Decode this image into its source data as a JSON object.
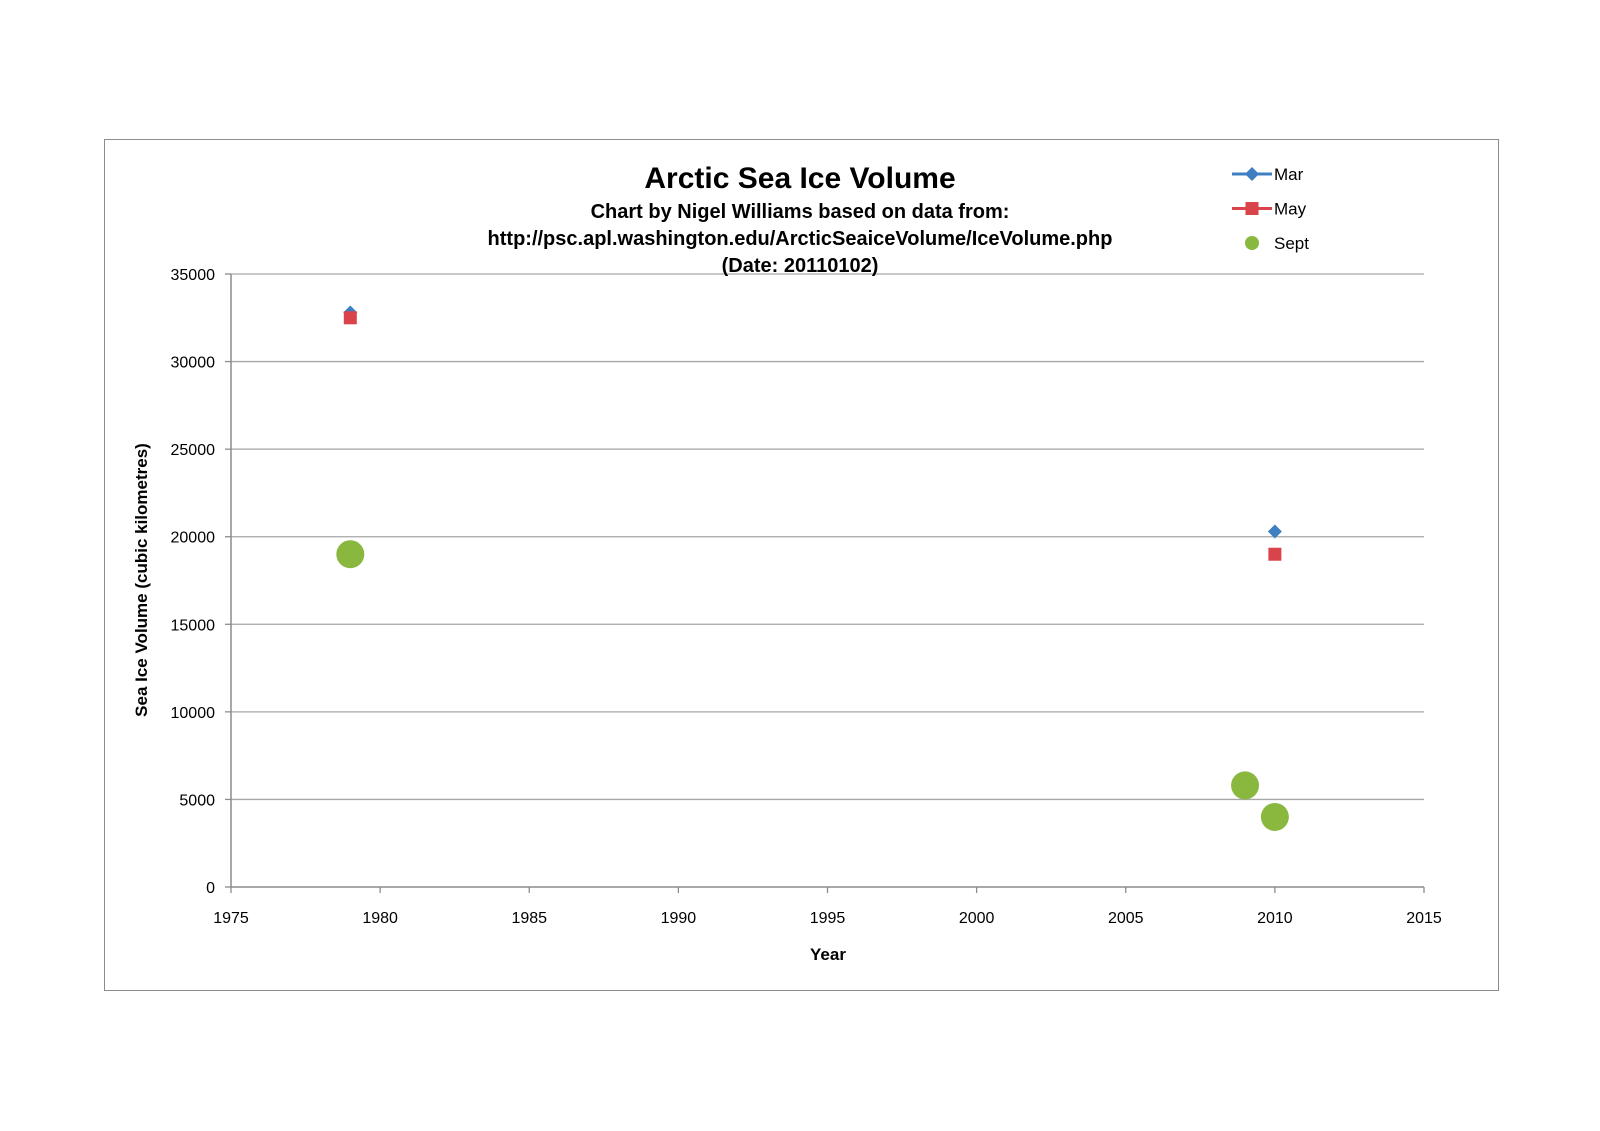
{
  "chart_data": {
    "type": "scatter",
    "title": "Arctic Sea Ice Volume",
    "subtitle_lines": [
      "Chart by Nigel Williams based on data from:",
      "http://psc.apl.washington.edu/ArcticSeaiceVolume/IceVolume.php",
      "(Date: 20110102)"
    ],
    "xlabel": "Year",
    "ylabel": "Sea Ice Volume (cubic kilometres)",
    "xlim": [
      1975,
      2015
    ],
    "ylim": [
      0,
      35000
    ],
    "x_ticks": [
      1975,
      1980,
      1985,
      1990,
      1995,
      2000,
      2005,
      2010,
      2015
    ],
    "y_ticks": [
      0,
      5000,
      10000,
      15000,
      20000,
      25000,
      30000,
      35000
    ],
    "grid": "horizontal",
    "legend_position": "top-right",
    "series": [
      {
        "name": "Mar",
        "marker": "diamond",
        "color": "#3d7fc1",
        "points": [
          {
            "x": 1979,
            "y": 32800
          },
          {
            "x": 2010,
            "y": 20300
          }
        ]
      },
      {
        "name": "May",
        "marker": "square",
        "color": "#d9434a",
        "points": [
          {
            "x": 1979,
            "y": 32500
          },
          {
            "x": 2010,
            "y": 19000
          }
        ]
      },
      {
        "name": "Sept",
        "marker": "circle",
        "color": "#8ab83f",
        "points": [
          {
            "x": 1979,
            "y": 19000
          },
          {
            "x": 2009,
            "y": 5800
          },
          {
            "x": 2010,
            "y": 4000
          }
        ]
      }
    ]
  }
}
